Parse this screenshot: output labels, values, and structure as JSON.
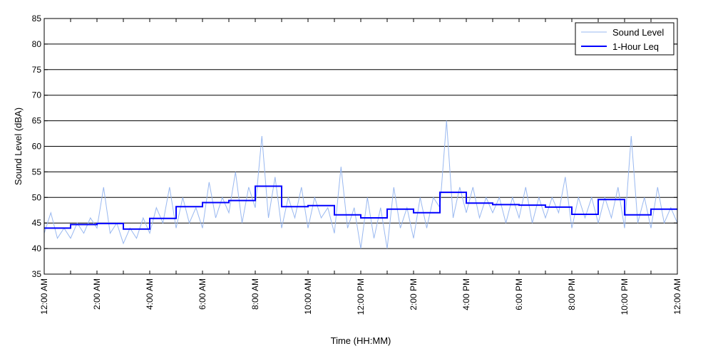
{
  "chart_data": {
    "type": "line",
    "xlabel": "Time (HH:MM)",
    "ylabel": "Sound Level (dBA)",
    "ylim": [
      35,
      85
    ],
    "yticks": [
      35,
      40,
      45,
      50,
      55,
      60,
      65,
      70,
      75,
      80,
      85
    ],
    "xlim": [
      0,
      24
    ],
    "xtick_hours": [
      0,
      2,
      4,
      6,
      8,
      10,
      12,
      14,
      16,
      18,
      20,
      22,
      24
    ],
    "xtick_labels": [
      "12:00 AM",
      "2:00 AM",
      "4:00 AM",
      "6:00 AM",
      "8:00 AM",
      "10:00 AM",
      "12:00 PM",
      "2:00 PM",
      "4:00 PM",
      "6:00 PM",
      "8:00 PM",
      "10:00 PM",
      "12:00 AM"
    ],
    "grid": "horizontal",
    "legend_position": "top-right",
    "series": [
      {
        "name": "Sound Level",
        "color": "#99b8f0",
        "x_hours": [
          0,
          0.25,
          0.5,
          0.75,
          1,
          1.25,
          1.5,
          1.75,
          2,
          2.25,
          2.5,
          2.75,
          3,
          3.25,
          3.5,
          3.75,
          4,
          4.25,
          4.5,
          4.75,
          5,
          5.25,
          5.5,
          5.75,
          6,
          6.25,
          6.5,
          6.75,
          7,
          7.25,
          7.5,
          7.75,
          8,
          8.25,
          8.5,
          8.75,
          9,
          9.25,
          9.5,
          9.75,
          10,
          10.25,
          10.5,
          10.75,
          11,
          11.25,
          11.5,
          11.75,
          12,
          12.25,
          12.5,
          12.75,
          13,
          13.25,
          13.5,
          13.75,
          14,
          14.25,
          14.5,
          14.75,
          15,
          15.25,
          15.5,
          15.75,
          16,
          16.25,
          16.5,
          16.75,
          17,
          17.25,
          17.5,
          17.75,
          18,
          18.25,
          18.5,
          18.75,
          19,
          19.25,
          19.5,
          19.75,
          20,
          20.25,
          20.5,
          20.75,
          21,
          21.25,
          21.5,
          21.75,
          22,
          22.25,
          22.5,
          22.75,
          23,
          23.25,
          23.5,
          23.75,
          24
        ],
        "values": [
          43,
          47,
          42,
          44,
          42,
          45,
          43,
          46,
          44,
          52,
          43,
          45,
          41,
          44,
          42,
          46,
          43,
          48,
          45,
          52,
          44,
          50,
          45,
          48,
          44,
          53,
          46,
          50,
          47,
          55,
          45,
          52,
          48,
          62,
          46,
          54,
          44,
          50,
          46,
          52,
          44,
          50,
          46,
          48,
          43,
          56,
          44,
          48,
          40,
          50,
          42,
          48,
          40,
          52,
          44,
          48,
          42,
          50,
          44,
          50,
          48,
          65,
          46,
          52,
          47,
          52,
          46,
          50,
          47,
          50,
          45,
          50,
          46,
          52,
          45,
          50,
          46,
          50,
          47,
          54,
          44,
          50,
          46,
          50,
          45,
          50,
          46,
          52,
          44,
          62,
          45,
          50,
          44,
          52,
          45,
          48,
          45
        ]
      },
      {
        "name": "1-Hour Leq",
        "color": "#0000ff",
        "step_starts": [
          0,
          1,
          2,
          3,
          4,
          5,
          6,
          7,
          8,
          9,
          10,
          11,
          12,
          13,
          14,
          15,
          16,
          17,
          18,
          19,
          20,
          21,
          22,
          23
        ],
        "values": [
          44.0,
          44.7,
          44.9,
          43.8,
          45.9,
          48.2,
          49.0,
          49.4,
          52.2,
          48.2,
          48.4,
          46.6,
          46.0,
          47.7,
          47.0,
          51.0,
          48.9,
          48.6,
          48.5,
          48.1,
          46.7,
          49.6,
          46.6,
          47.7
        ]
      }
    ]
  }
}
